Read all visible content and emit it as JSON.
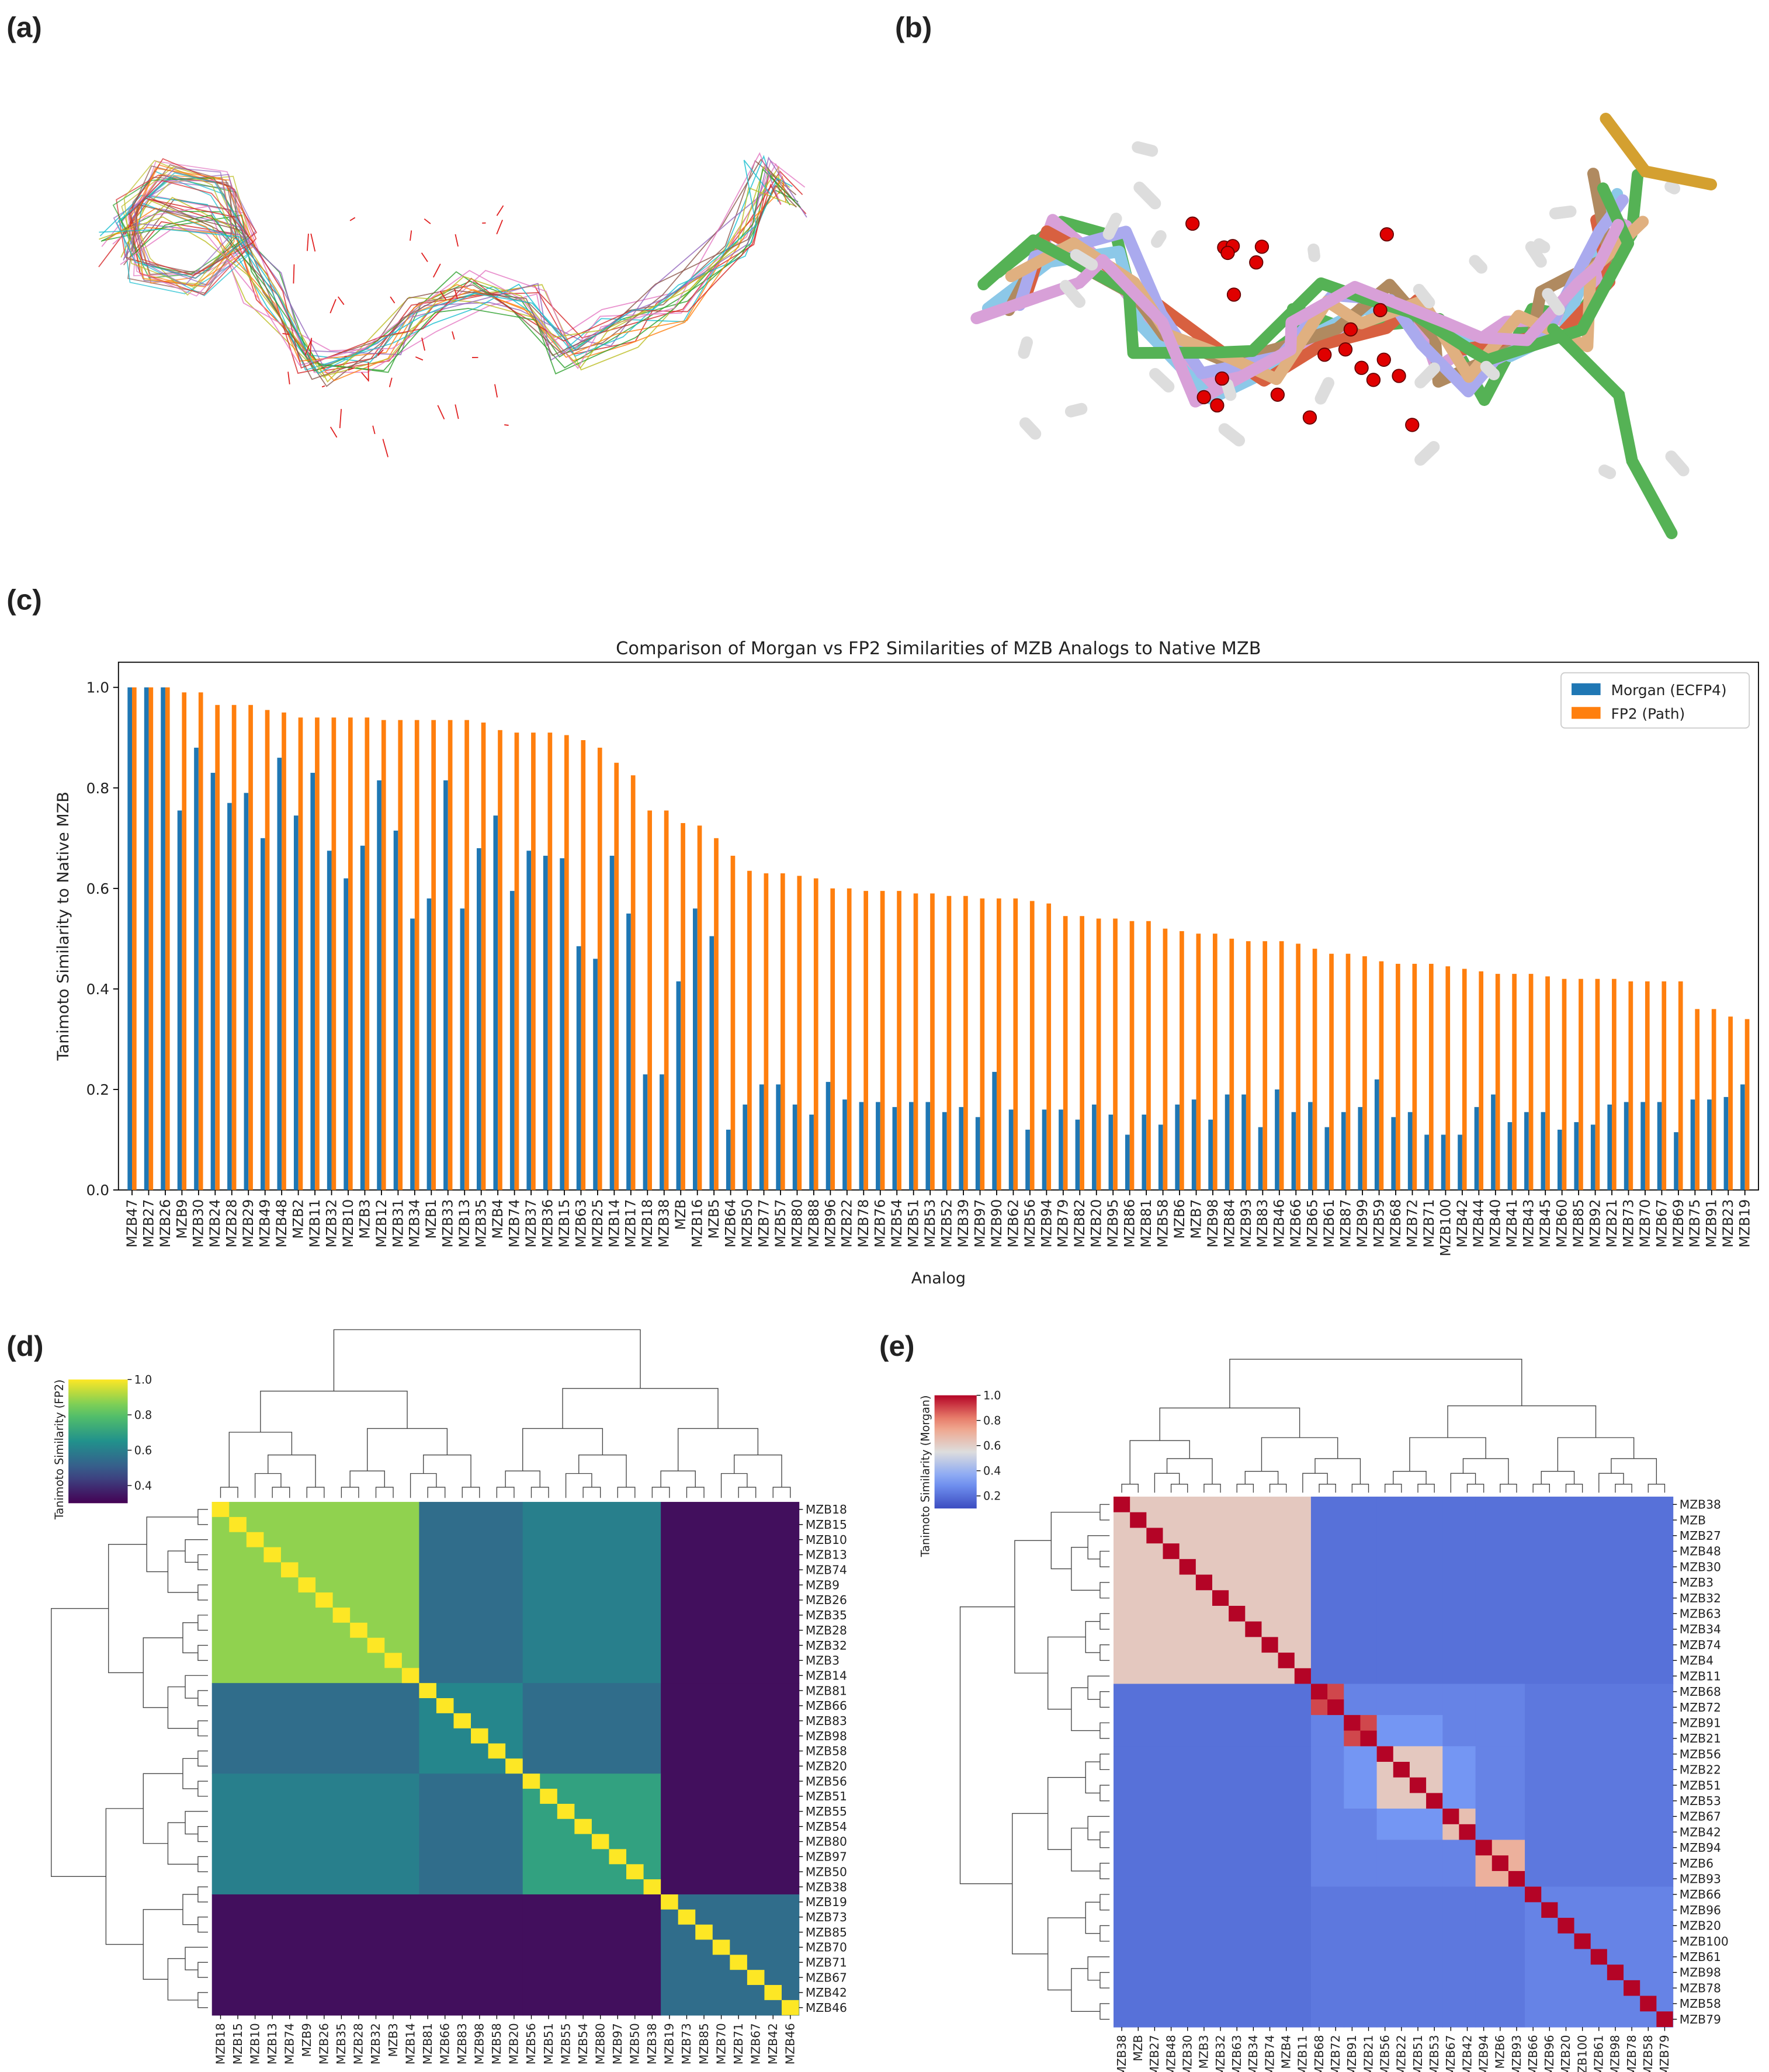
{
  "panel_labels": [
    "(a)",
    "(b)",
    "(c)",
    "(d)",
    "(e)"
  ],
  "chart_data": [
    {
      "type": "bar",
      "title": "Comparison of Morgan vs FP2 Similarities of MZB Analogs to Native MZB",
      "xlabel": "Analog",
      "ylabel": "Tanimoto Similarity to Native MZB",
      "legend": "upper right",
      "categories": [
        "MZB47",
        "MZB27",
        "MZB26",
        "MZB9",
        "MZB30",
        "MZB24",
        "MZB28",
        "MZB29",
        "MZB49",
        "MZB48",
        "MZB2",
        "MZB11",
        "MZB32",
        "MZB10",
        "MZB3",
        "MZB12",
        "MZB31",
        "MZB34",
        "MZB1",
        "MZB33",
        "MZB13",
        "MZB35",
        "MZB4",
        "MZB74",
        "MZB37",
        "MZB36",
        "MZB15",
        "MZB63",
        "MZB25",
        "MZB14",
        "MZB17",
        "MZB18",
        "MZB38",
        "MZB",
        "MZB16",
        "MZB5",
        "MZB64",
        "MZB50",
        "MZB77",
        "MZB57",
        "MZB80",
        "MZB88",
        "MZB96",
        "MZB22",
        "MZB78",
        "MZB76",
        "MZB54",
        "MZB51",
        "MZB53",
        "MZB52",
        "MZB39",
        "MZB97",
        "MZB90",
        "MZB62",
        "MZB56",
        "MZB94",
        "MZB79",
        "MZB82",
        "MZB20",
        "MZB95",
        "MZB86",
        "MZB81",
        "MZB58",
        "MZB6",
        "MZB7",
        "MZB98",
        "MZB84",
        "MZB93",
        "MZB83",
        "MZB46",
        "MZB66",
        "MZB65",
        "MZB61",
        "MZB87",
        "MZB99",
        "MZB59",
        "MZB68",
        "MZB72",
        "MZB71",
        "MZB100",
        "MZB42",
        "MZB44",
        "MZB40",
        "MZB41",
        "MZB43",
        "MZB45",
        "MZB60",
        "MZB85",
        "MZB92",
        "MZB21",
        "MZB73",
        "MZB70",
        "MZB67",
        "MZB69",
        "MZB75",
        "MZB91",
        "MZB23",
        "MZB19"
      ],
      "series": [
        {
          "name": "Morgan (ECFP4)",
          "color": "#1f77b4",
          "values": [
            1.0,
            1.0,
            1.0,
            0.755,
            0.88,
            0.83,
            0.77,
            0.79,
            0.7,
            0.86,
            0.745,
            0.83,
            0.675,
            0.62,
            0.685,
            0.815,
            0.715,
            0.54,
            0.58,
            0.815,
            0.56,
            0.68,
            0.745,
            0.595,
            0.675,
            0.665,
            0.66,
            0.485,
            0.46,
            0.665,
            0.55,
            0.23,
            0.23,
            0.415,
            0.56,
            0.505,
            0.12,
            0.17,
            0.21,
            0.21,
            0.17,
            0.15,
            0.215,
            0.18,
            0.175,
            0.175,
            0.165,
            0.175,
            0.175,
            0.155,
            0.165,
            0.145,
            0.235,
            0.16,
            0.12,
            0.16,
            0.16,
            0.14,
            0.17,
            0.15,
            0.11,
            0.15,
            0.13,
            0.17,
            0.18,
            0.14,
            0.19,
            0.19,
            0.125,
            0.2,
            0.155,
            0.175,
            0.125,
            0.155,
            0.165,
            0.22,
            0.145,
            0.155,
            0.11,
            0.11,
            0.11,
            0.165,
            0.19,
            0.135,
            0.155,
            0.155,
            0.12,
            0.135,
            0.13,
            0.17,
            0.175,
            0.175,
            0.175,
            0.115,
            0.18,
            0.18,
            0.185,
            0.21
          ]
        },
        {
          "name": "FP2 (Path)",
          "color": "#ff7f0e",
          "values": [
            1.0,
            1.0,
            1.0,
            0.99,
            0.99,
            0.965,
            0.965,
            0.965,
            0.955,
            0.95,
            0.94,
            0.94,
            0.94,
            0.94,
            0.94,
            0.935,
            0.935,
            0.935,
            0.935,
            0.935,
            0.935,
            0.93,
            0.915,
            0.91,
            0.91,
            0.91,
            0.905,
            0.895,
            0.88,
            0.85,
            0.825,
            0.755,
            0.755,
            0.73,
            0.725,
            0.7,
            0.665,
            0.635,
            0.63,
            0.63,
            0.625,
            0.62,
            0.6,
            0.6,
            0.595,
            0.595,
            0.595,
            0.59,
            0.59,
            0.585,
            0.585,
            0.58,
            0.58,
            0.58,
            0.575,
            0.57,
            0.545,
            0.545,
            0.54,
            0.54,
            0.535,
            0.535,
            0.52,
            0.515,
            0.51,
            0.51,
            0.5,
            0.495,
            0.495,
            0.495,
            0.49,
            0.48,
            0.47,
            0.47,
            0.465,
            0.455,
            0.45,
            0.45,
            0.45,
            0.445,
            0.44,
            0.435,
            0.43,
            0.43,
            0.43,
            0.425,
            0.42,
            0.42,
            0.42,
            0.42,
            0.415,
            0.415,
            0.415,
            0.415,
            0.36,
            0.36,
            0.345,
            0.34
          ]
        }
      ],
      "ylim": [
        0,
        1.05
      ],
      "yticks": [
        {
          "value": 0,
          "label": "0.0"
        },
        0.2,
        0.4,
        0.6,
        0.8,
        {
          "value": 1,
          "label": "1.0"
        }
      ]
    },
    {
      "type": "heatmap",
      "colorbar_label": "Tanimoto Similarity (FP2)",
      "colormap": "viridis",
      "clim": [
        0.3,
        1.0
      ],
      "cticks": [
        0.4,
        0.6,
        0.8,
        {
          "value": 1,
          "label": "1.0"
        }
      ],
      "labels": [
        "MZB18",
        "MZB15",
        "MZB10",
        "MZB13",
        "MZB74",
        "MZB9",
        "MZB26",
        "MZB35",
        "MZB28",
        "MZB32",
        "MZB3",
        "MZB14",
        "MZB81",
        "MZB66",
        "MZB83",
        "MZB98",
        "MZB58",
        "MZB20",
        "MZB56",
        "MZB51",
        "MZB55",
        "MZB54",
        "MZB80",
        "MZB97",
        "MZB50",
        "MZB38",
        "MZB19",
        "MZB73",
        "MZB85",
        "MZB70",
        "MZB71",
        "MZB67",
        "MZB42",
        "MZB46"
      ],
      "group_sizes": [
        12,
        6,
        8,
        8
      ],
      "block_values": [
        [
          0.88,
          0.55,
          0.6,
          0.33
        ],
        [
          0.55,
          0.62,
          0.55,
          0.33
        ],
        [
          0.6,
          0.55,
          0.7,
          0.33
        ],
        [
          0.33,
          0.33,
          0.33,
          0.55
        ]
      ],
      "diagonal": 1.0
    },
    {
      "type": "heatmap",
      "colorbar_label": "Tanimoto Similarity (Morgan)",
      "colormap": "coolwarm",
      "clim": [
        0.1,
        1.0
      ],
      "cticks": [
        0.2,
        0.4,
        0.6,
        0.8,
        {
          "value": 1,
          "label": "1.0"
        }
      ],
      "labels": [
        "MZB38",
        "MZB",
        "MZB27",
        "MZB48",
        "MZB30",
        "MZB3",
        "MZB32",
        "MZB63",
        "MZB34",
        "MZB74",
        "MZB4",
        "MZB11",
        "MZB68",
        "MZB72",
        "MZB91",
        "MZB21",
        "MZB56",
        "MZB22",
        "MZB51",
        "MZB53",
        "MZB67",
        "MZB42",
        "MZB94",
        "MZB6",
        "MZB93",
        "MZB66",
        "MZB96",
        "MZB20",
        "MZB100",
        "MZB61",
        "MZB98",
        "MZB78",
        "MZB58",
        "MZB79"
      ],
      "group_sizes": [
        12,
        2,
        2,
        4,
        2,
        3,
        9
      ],
      "block_values": [
        [
          0.62,
          0.2,
          0.2,
          0.2,
          0.2,
          0.2,
          0.2
        ],
        [
          0.2,
          0.9,
          0.25,
          0.25,
          0.25,
          0.25,
          0.22
        ],
        [
          0.2,
          0.25,
          0.9,
          0.3,
          0.25,
          0.25,
          0.22
        ],
        [
          0.2,
          0.25,
          0.3,
          0.62,
          0.3,
          0.25,
          0.22
        ],
        [
          0.2,
          0.25,
          0.25,
          0.3,
          0.65,
          0.25,
          0.22
        ],
        [
          0.2,
          0.25,
          0.25,
          0.25,
          0.25,
          0.7,
          0.22
        ],
        [
          0.2,
          0.22,
          0.22,
          0.22,
          0.22,
          0.22,
          0.25
        ]
      ],
      "diagonal": 1.0
    }
  ]
}
